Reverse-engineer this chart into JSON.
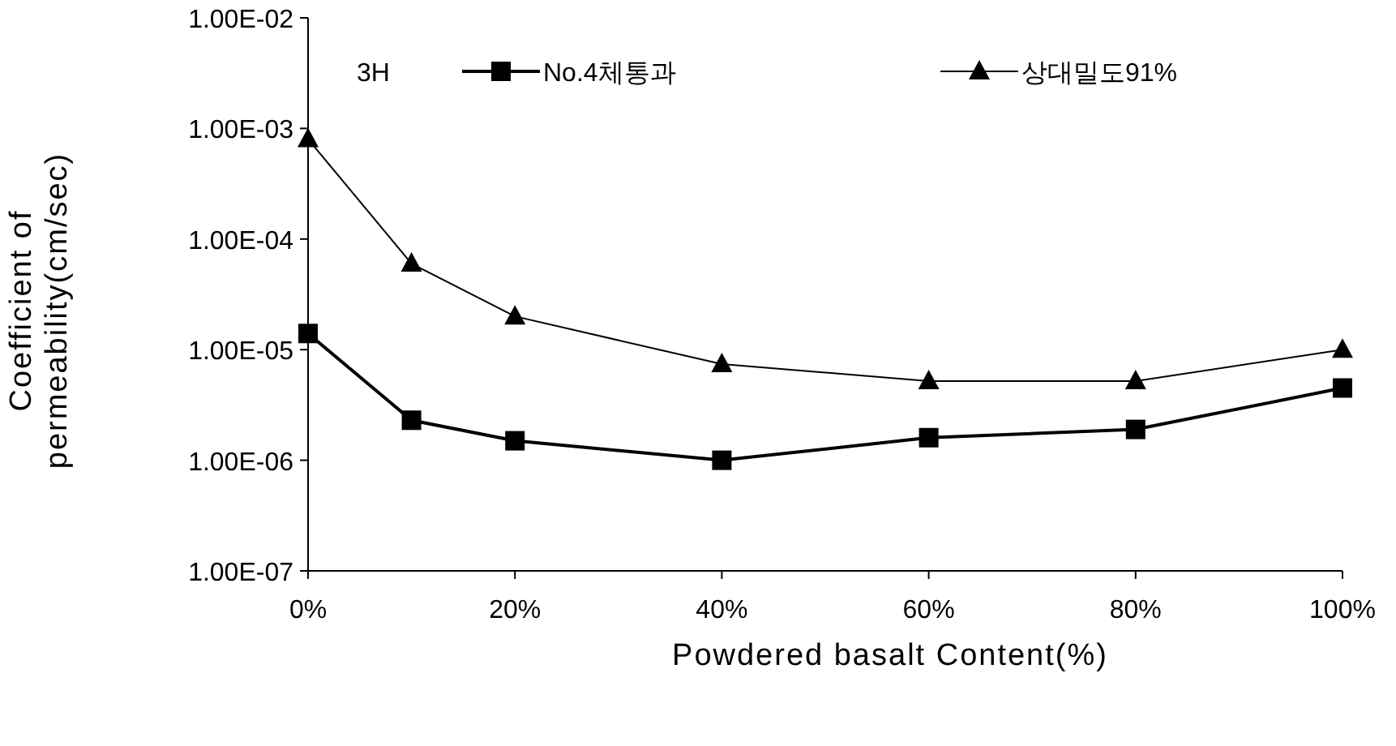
{
  "chart_data": {
    "type": "line",
    "xlabel": "Powdered basalt Content(%)",
    "ylabel": "Coefficient of permeability(cm/sec)",
    "x": [
      0,
      10,
      20,
      40,
      60,
      80,
      100
    ],
    "series": [
      {
        "name": "No.4체통과",
        "color": "#000000",
        "marker": "square",
        "values": [
          1.4e-05,
          2.3e-06,
          1.5e-06,
          1e-06,
          1.6e-06,
          1.9e-06,
          4.5e-06
        ]
      },
      {
        "name": "상대밀도91%",
        "color": "#000000",
        "marker": "triangle",
        "values": [
          0.0008,
          6e-05,
          2e-05,
          7.4e-06,
          5.2e-06,
          5.2e-06,
          1e-05
        ]
      }
    ],
    "log": "y",
    "xlim": [
      0,
      100
    ],
    "ylim": [
      1e-07,
      0.01
    ],
    "xticks": [
      {
        "value": 0,
        "label": "0%"
      },
      {
        "value": 20,
        "label": "20%"
      },
      {
        "value": 40,
        "label": "40%"
      },
      {
        "value": 60,
        "label": "60%"
      },
      {
        "value": 80,
        "label": "80%"
      },
      {
        "value": 100,
        "label": "100%"
      }
    ],
    "yticks": [
      {
        "value": 1e-07,
        "label": "1.00E-07"
      },
      {
        "value": 1e-06,
        "label": "1.00E-06"
      },
      {
        "value": 1e-05,
        "label": "1.00E-05"
      },
      {
        "value": 0.0001,
        "label": "1.00E-04"
      },
      {
        "value": 0.001,
        "label": "1.00E-03"
      },
      {
        "value": 0.01,
        "label": "1.00E-02"
      }
    ],
    "annotations": [
      "3H"
    ],
    "legend": "top",
    "grid": false
  }
}
